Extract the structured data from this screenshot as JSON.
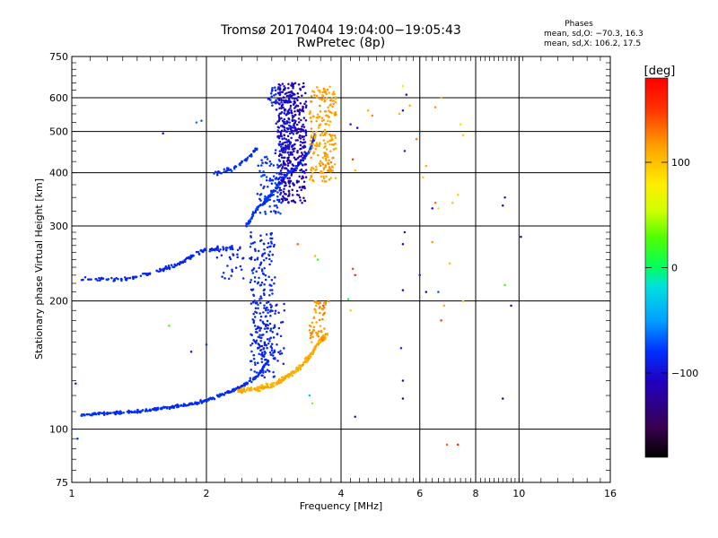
{
  "header": {
    "title_line1": "Tromsø 20170404 19:04:00−19:05:43",
    "title_line2": "RwPretec (8p)",
    "phases_heading": "Phases",
    "phases_line1": "mean, sd,O: −70.3, 16.3",
    "phases_line2": "mean, sd,X: 106.2, 17.5"
  },
  "chart_data": {
    "type": "scatter",
    "title": "Tromsø 20170404 19:04:00−19:05:43",
    "subtitle": "RwPretec (8p)",
    "xlabel": "Frequency [MHz]",
    "ylabel": "Stationary phase Virtual Height [km]",
    "x_scale": "log",
    "y_scale": "log",
    "xlim": [
      1,
      16
    ],
    "ylim": [
      75,
      750
    ],
    "x_ticks": [
      1,
      2,
      4,
      6,
      8,
      10,
      16
    ],
    "x_tick_labels": [
      "1",
      "2",
      "4",
      "6",
      "8",
      "10",
      "16"
    ],
    "y_ticks": [
      75,
      100,
      200,
      300,
      400,
      500,
      600,
      750
    ],
    "y_tick_labels": [
      "75",
      "100",
      "200",
      "300",
      "400",
      "500",
      "600",
      "750"
    ],
    "grid": true,
    "colorbar": {
      "label": "[deg]",
      "range": [
        -180,
        180
      ],
      "ticks": [
        100,
        0,
        -100
      ],
      "tick_labels": [
        "100",
        "0",
        "−100"
      ]
    },
    "series": [
      {
        "name": "O-mode",
        "mean_phase": -70.3,
        "sd_phase": 16.3
      },
      {
        "name": "X-mode",
        "mean_phase": 106.2,
        "sd_phase": 17.5
      }
    ],
    "traces": [
      {
        "points": [
          [
            1.05,
            108
          ],
          [
            1.2,
            109
          ],
          [
            1.4,
            110
          ],
          [
            1.6,
            112
          ],
          [
            1.8,
            114
          ],
          [
            2.0,
            117
          ],
          [
            2.2,
            121
          ],
          [
            2.4,
            126
          ],
          [
            2.6,
            133
          ],
          [
            2.75,
            145
          ]
        ],
        "phase_mean": -82,
        "phase_spread": 12,
        "height_spread": 0.012,
        "density": 22
      },
      {
        "points": [
          [
            1.05,
            225
          ],
          [
            1.3,
            224
          ],
          [
            1.5,
            232
          ],
          [
            1.7,
            242
          ],
          [
            1.8,
            250
          ],
          [
            1.95,
            262
          ],
          [
            2.1,
            265
          ],
          [
            2.3,
            267
          ]
        ],
        "phase_mean": -85,
        "phase_spread": 12,
        "height_spread": 0.015,
        "density": 14
      },
      {
        "points": [
          [
            2.05,
            395
          ],
          [
            2.3,
            410
          ],
          [
            2.5,
            435
          ],
          [
            2.6,
            460
          ]
        ],
        "phase_mean": -82,
        "phase_spread": 10,
        "height_spread": 0.015,
        "density": 12
      },
      {
        "points": [
          [
            2.45,
            300
          ],
          [
            2.6,
            330
          ],
          [
            2.75,
            350
          ],
          [
            2.9,
            375
          ],
          [
            3.05,
            400
          ],
          [
            3.2,
            415
          ],
          [
            3.4,
            450
          ],
          [
            3.5,
            490
          ]
        ],
        "phase_mean": -80,
        "phase_spread": 15,
        "height_spread": 0.02,
        "density": 18
      }
    ],
    "clusters": [
      {
        "x": [
          2.5,
          2.85
        ],
        "y": [
          130,
          290
        ],
        "phase_mean": -85,
        "phase_spread": 12,
        "count": 230
      },
      {
        "x": [
          2.9,
          3.35
        ],
        "y": [
          340,
          650
        ],
        "phase_mean": -110,
        "phase_spread": 16,
        "count": 380
      },
      {
        "x": [
          2.85,
          3.15
        ],
        "y": [
          440,
          640
        ],
        "phase_mean": -95,
        "phase_spread": 12,
        "count": 120
      },
      {
        "x": [
          2.6,
          2.95
        ],
        "y": [
          320,
          440
        ],
        "phase_mean": -80,
        "phase_spread": 12,
        "count": 80
      },
      {
        "x": [
          2.75,
          2.9
        ],
        "y": [
          575,
          645
        ],
        "phase_mean": -85,
        "phase_spread": 10,
        "count": 20
      },
      {
        "x": [
          2.55,
          3.0
        ],
        "y": [
          140,
          200
        ],
        "phase_mean": -88,
        "phase_spread": 10,
        "count": 70
      },
      {
        "x": [
          3.4,
          3.9
        ],
        "y": [
          380,
          640
        ],
        "phase_mean": 115,
        "phase_spread": 18,
        "count": 220
      },
      {
        "x": [
          3.4,
          3.7
        ],
        "y": [
          160,
          200
        ],
        "phase_mean": 120,
        "phase_spread": 14,
        "count": 55
      },
      {
        "x": [
          2.1,
          2.45
        ],
        "y": [
          225,
          270
        ],
        "phase_mean": -88,
        "phase_spread": 10,
        "count": 30
      }
    ],
    "x_branches": [
      {
        "points": [
          [
            2.35,
            123
          ],
          [
            2.6,
            124
          ],
          [
            2.8,
            127
          ],
          [
            3.0,
            132
          ],
          [
            3.2,
            138
          ],
          [
            3.4,
            148
          ],
          [
            3.6,
            162
          ],
          [
            3.75,
            168
          ]
        ],
        "phase_mean": 110,
        "phase_spread": 15,
        "height_spread": 0.02,
        "density": 24
      }
    ],
    "scattered": [
      [
        4.35,
        510,
        -110
      ],
      [
        4.2,
        520,
        -95
      ],
      [
        4.6,
        560,
        110
      ],
      [
        4.7,
        545,
        125
      ],
      [
        4.25,
        430,
        150
      ],
      [
        4.3,
        405,
        100
      ],
      [
        5.5,
        640,
        60
      ],
      [
        5.6,
        610,
        -110
      ],
      [
        5.5,
        560,
        -100
      ],
      [
        5.4,
        550,
        105
      ],
      [
        5.7,
        575,
        110
      ],
      [
        5.55,
        450,
        -90
      ],
      [
        5.9,
        480,
        130
      ],
      [
        6.1,
        390,
        95
      ],
      [
        6.2,
        415,
        110
      ],
      [
        6.5,
        340,
        135
      ],
      [
        6.4,
        330,
        -115
      ],
      [
        6.5,
        570,
        120
      ],
      [
        6.7,
        600,
        110
      ],
      [
        6.6,
        330,
        90
      ],
      [
        7.1,
        340,
        100
      ],
      [
        7.3,
        355,
        95
      ],
      [
        7.4,
        520,
        85
      ],
      [
        7.5,
        490,
        95
      ],
      [
        7.0,
        245,
        100
      ],
      [
        6.8,
        195,
        110
      ],
      [
        6.6,
        210,
        -70
      ],
      [
        5.5,
        272,
        -110
      ],
      [
        5.55,
        290,
        -95
      ],
      [
        5.5,
        212,
        -110
      ],
      [
        5.45,
        155,
        -85
      ],
      [
        5.5,
        130,
        -110
      ],
      [
        5.5,
        118,
        -120
      ],
      [
        6.0,
        230,
        -90
      ],
      [
        6.2,
        210,
        -105
      ],
      [
        6.4,
        275,
        120
      ],
      [
        6.7,
        180,
        150
      ],
      [
        6.9,
        92,
        135
      ],
      [
        7.3,
        92,
        160
      ],
      [
        7.5,
        200,
        100
      ],
      [
        9.3,
        350,
        -100
      ],
      [
        9.2,
        335,
        -110
      ],
      [
        9.2,
        118,
        -110
      ],
      [
        9.3,
        218,
        20
      ],
      [
        9.6,
        195,
        -110
      ],
      [
        10.1,
        283,
        -140
      ],
      [
        3.2,
        272,
        135
      ],
      [
        3.5,
        255,
        105
      ],
      [
        3.55,
        250,
        15
      ],
      [
        3.75,
        200,
        130
      ],
      [
        3.65,
        195,
        150
      ],
      [
        4.25,
        238,
        145
      ],
      [
        4.3,
        230,
        160
      ],
      [
        4.15,
        202,
        5
      ],
      [
        4.2,
        190,
        95
      ],
      [
        3.4,
        120,
        -30
      ],
      [
        3.45,
        115,
        40
      ],
      [
        4.3,
        107,
        -95
      ],
      [
        1.6,
        495,
        -95
      ],
      [
        1.9,
        525,
        -60
      ],
      [
        1.95,
        530,
        -70
      ],
      [
        1.65,
        175,
        25
      ],
      [
        2.0,
        158,
        -85
      ],
      [
        1.85,
        152,
        -95
      ],
      [
        1.02,
        128,
        -90
      ],
      [
        1.03,
        95,
        -85
      ]
    ]
  }
}
